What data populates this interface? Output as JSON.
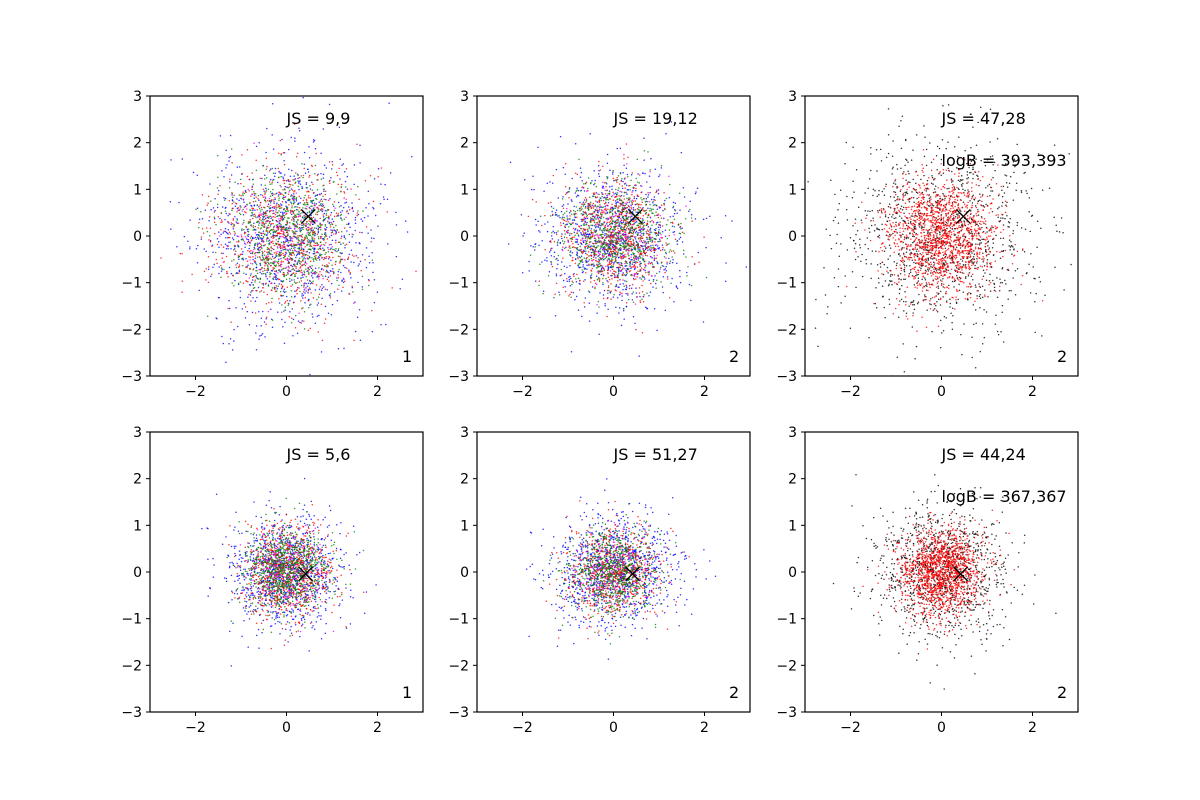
{
  "chart_data": [
    {
      "type": "scatter",
      "xlim": [
        -3,
        3
      ],
      "ylim": [
        -3,
        3
      ],
      "xticks": [
        "−2",
        "0",
        "2"
      ],
      "yticks": [
        "3",
        "2",
        "1",
        "0",
        "−1",
        "−2",
        "−3"
      ],
      "annotations": [
        "JS = 9,9"
      ],
      "corner_label": "1",
      "marker": {
        "x": 0.48,
        "y": 0.42,
        "symbol": "X"
      },
      "series": [
        {
          "color": "#0000ff",
          "spread_x": 0.95,
          "spread_y": 0.95,
          "count": 1000,
          "seed": 11
        },
        {
          "color": "#ff0000",
          "spread_x": 0.75,
          "spread_y": 0.75,
          "count": 800,
          "seed": 12
        },
        {
          "color": "#008000",
          "spread_x": 0.65,
          "spread_y": 0.65,
          "count": 800,
          "seed": 13
        },
        {
          "color": "#ff00ff",
          "spread_x": 0.6,
          "spread_y": 0.6,
          "count": 150,
          "seed": 14
        }
      ]
    },
    {
      "type": "scatter",
      "xlim": [
        -3,
        3
      ],
      "ylim": [
        -3,
        3
      ],
      "xticks": [
        "−2",
        "0",
        "2"
      ],
      "yticks": [
        "3",
        "2",
        "1",
        "0",
        "−1",
        "−2",
        "−3"
      ],
      "annotations": [
        "JS = 19,12"
      ],
      "corner_label": "2",
      "marker": {
        "x": 0.48,
        "y": 0.42,
        "symbol": "X"
      },
      "series": [
        {
          "color": "#0000ff",
          "spread_x": 0.8,
          "spread_y": 0.75,
          "count": 1000,
          "seed": 21
        },
        {
          "color": "#ff0000",
          "spread_x": 0.6,
          "spread_y": 0.6,
          "count": 800,
          "seed": 22
        },
        {
          "color": "#008000",
          "spread_x": 0.6,
          "spread_y": 0.55,
          "count": 800,
          "seed": 23
        },
        {
          "color": "#ff00ff",
          "spread_x": 0.55,
          "spread_y": 0.55,
          "count": 150,
          "seed": 24
        }
      ]
    },
    {
      "type": "scatter",
      "xlim": [
        -3,
        3
      ],
      "ylim": [
        -3,
        3
      ],
      "xticks": [
        "−2",
        "0",
        "2"
      ],
      "yticks": [
        "3",
        "2",
        "1",
        "0",
        "−1",
        "−2",
        "−3"
      ],
      "annotations": [
        "JS = 47,28",
        "logB = 393,393"
      ],
      "corner_label": "2",
      "marker": {
        "x": 0.48,
        "y": 0.42,
        "symbol": "X"
      },
      "series": [
        {
          "color": "#000000",
          "spread_x": 1.05,
          "spread_y": 1.0,
          "count": 1200,
          "seed": 31
        },
        {
          "color": "#ff0000",
          "spread_x": 0.6,
          "spread_y": 0.6,
          "count": 1500,
          "seed": 32
        }
      ]
    },
    {
      "type": "scatter",
      "xlim": [
        -3,
        3
      ],
      "ylim": [
        -3,
        3
      ],
      "xticks": [
        "−2",
        "0",
        "2"
      ],
      "yticks": [
        "3",
        "2",
        "1",
        "0",
        "−1",
        "−2",
        "−3"
      ],
      "annotations": [
        "JS = 5,6"
      ],
      "corner_label": "1",
      "marker": {
        "x": 0.42,
        "y": -0.04,
        "symbol": "X"
      },
      "series": [
        {
          "color": "#0000ff",
          "spread_x": 0.6,
          "spread_y": 0.6,
          "count": 1000,
          "seed": 41
        },
        {
          "color": "#ff0000",
          "spread_x": 0.5,
          "spread_y": 0.5,
          "count": 800,
          "seed": 42
        },
        {
          "color": "#008000",
          "spread_x": 0.45,
          "spread_y": 0.45,
          "count": 900,
          "seed": 43
        },
        {
          "color": "#ff00ff",
          "spread_x": 0.4,
          "spread_y": 0.4,
          "count": 150,
          "seed": 44
        }
      ]
    },
    {
      "type": "scatter",
      "xlim": [
        -3,
        3
      ],
      "ylim": [
        -3,
        3
      ],
      "xticks": [
        "−2",
        "0",
        "2"
      ],
      "yticks": [
        "3",
        "2",
        "1",
        "0",
        "−1",
        "−2",
        "−3"
      ],
      "annotations": [
        "JS = 51,27"
      ],
      "corner_label": "2",
      "marker": {
        "x": 0.42,
        "y": -0.04,
        "symbol": "X"
      },
      "series": [
        {
          "color": "#0000ff",
          "spread_x": 0.7,
          "spread_y": 0.6,
          "count": 1000,
          "seed": 51
        },
        {
          "color": "#ff0000",
          "spread_x": 0.5,
          "spread_y": 0.5,
          "count": 700,
          "seed": 52
        },
        {
          "color": "#008000",
          "spread_x": 0.45,
          "spread_y": 0.45,
          "count": 800,
          "seed": 53
        },
        {
          "color": "#ff00ff",
          "spread_x": 0.4,
          "spread_y": 0.4,
          "count": 150,
          "seed": 54
        }
      ]
    },
    {
      "type": "scatter",
      "xlim": [
        -3,
        3
      ],
      "ylim": [
        -3,
        3
      ],
      "xticks": [
        "−2",
        "0",
        "2"
      ],
      "yticks": [
        "3",
        "2",
        "1",
        "0",
        "−1",
        "−2",
        "−3"
      ],
      "annotations": [
        "JS = 44,24",
        "logB = 367,367"
      ],
      "corner_label": "2",
      "marker": {
        "x": 0.42,
        "y": -0.04,
        "symbol": "X"
      },
      "series": [
        {
          "color": "#000000",
          "spread_x": 0.75,
          "spread_y": 0.7,
          "count": 1100,
          "seed": 61
        },
        {
          "color": "#ff0000",
          "spread_x": 0.45,
          "spread_y": 0.45,
          "count": 1500,
          "seed": 62
        }
      ]
    }
  ]
}
